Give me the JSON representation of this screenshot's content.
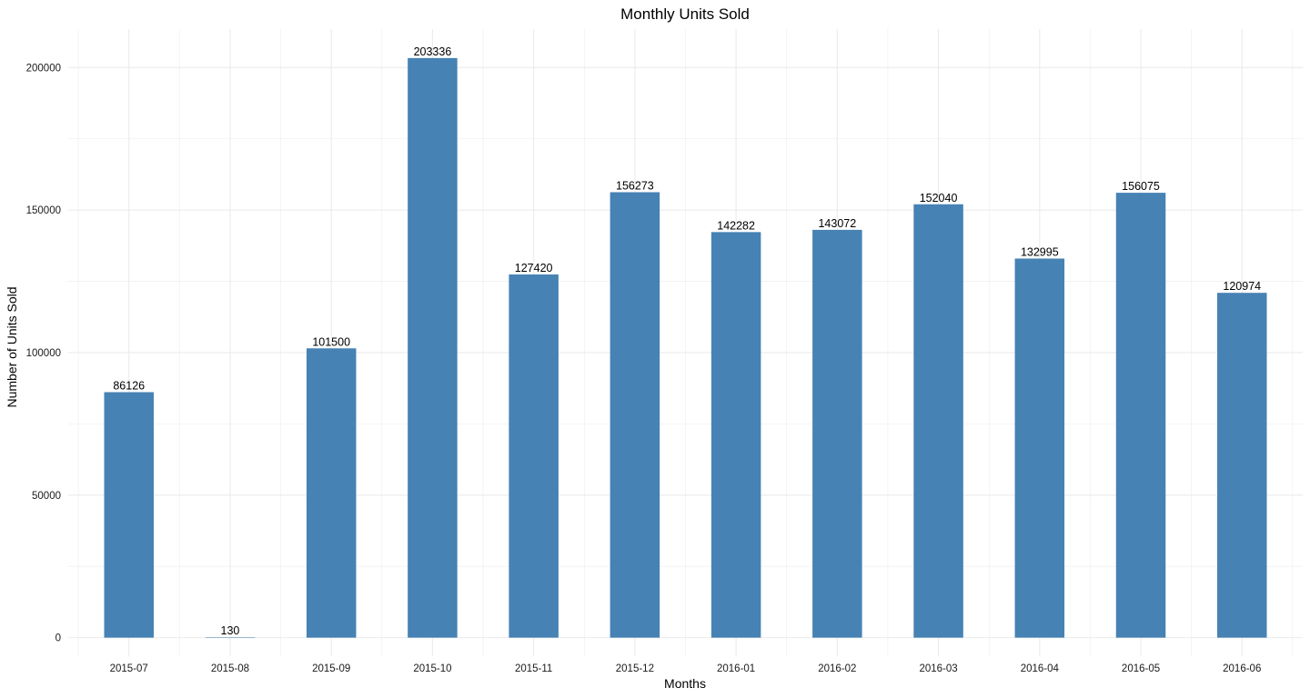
{
  "chart_data": {
    "type": "bar",
    "title": "Monthly Units Sold",
    "xlabel": "Months",
    "ylabel": "Number of Units Sold",
    "categories": [
      "2015-07",
      "2015-08",
      "2015-09",
      "2015-10",
      "2015-11",
      "2015-12",
      "2016-01",
      "2016-02",
      "2016-03",
      "2016-04",
      "2016-05",
      "2016-06"
    ],
    "values": [
      86126,
      130,
      101500,
      203336,
      127420,
      156273,
      142282,
      143072,
      152040,
      132995,
      156075,
      120974
    ],
    "data_labels": [
      "86126",
      "130",
      "101500",
      "203336",
      "127420",
      "156273",
      "142282",
      "143072",
      "152040",
      "132995",
      "156075",
      "120974"
    ],
    "y_ticks": [
      0,
      50000,
      100000,
      150000,
      200000
    ],
    "y_tick_labels": [
      "0",
      "50000",
      "100000",
      "150000",
      "200000"
    ],
    "ylim": [
      -6500,
      213500
    ],
    "grid": true,
    "legend": "none",
    "bar_color": "#4682B4",
    "grid_color": "#EBEBEB"
  }
}
